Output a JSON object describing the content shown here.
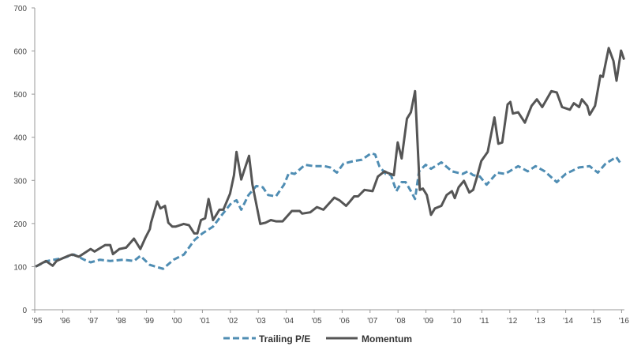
{
  "chart_data": {
    "type": "line",
    "title": "",
    "xlabel": "",
    "ylabel": "",
    "xlim": [
      1995,
      2016.1
    ],
    "ylim": [
      0,
      700
    ],
    "yticks": [
      0,
      100,
      200,
      300,
      400,
      500,
      600,
      700
    ],
    "xticks": [
      {
        "year": 1995,
        "label": "'95"
      },
      {
        "year": 1996,
        "label": "'96"
      },
      {
        "year": 1997,
        "label": "'97"
      },
      {
        "year": 1998,
        "label": "'98"
      },
      {
        "year": 1999,
        "label": "'99"
      },
      {
        "year": 2000,
        "label": "'00"
      },
      {
        "year": 2001,
        "label": "'01"
      },
      {
        "year": 2002,
        "label": "'02"
      },
      {
        "year": 2003,
        "label": "'03"
      },
      {
        "year": 2004,
        "label": "'04"
      },
      {
        "year": 2005,
        "label": "'05"
      },
      {
        "year": 2006,
        "label": "'06"
      },
      {
        "year": 2007,
        "label": "'07"
      },
      {
        "year": 2008,
        "label": "'08"
      },
      {
        "year": 2009,
        "label": "'09"
      },
      {
        "year": 2010,
        "label": "'10"
      },
      {
        "year": 2011,
        "label": "'11"
      },
      {
        "year": 2012,
        "label": "'12"
      },
      {
        "year": 2013,
        "label": "'13"
      },
      {
        "year": 2014,
        "label": "'14"
      },
      {
        "year": 2015,
        "label": "'15"
      },
      {
        "year": 2016,
        "label": "'16"
      }
    ],
    "grid": false,
    "legend_position": "bottom-center",
    "series": [
      {
        "name": "Trailing P/E",
        "color": "#4f8db3",
        "style": "dashed",
        "points": [
          [
            1995.03,
            100
          ],
          [
            1995.45,
            113
          ],
          [
            1996.02,
            120
          ],
          [
            1996.4,
            128
          ],
          [
            1996.77,
            116
          ],
          [
            1997.0,
            110
          ],
          [
            1997.33,
            116
          ],
          [
            1997.7,
            113
          ],
          [
            1998.17,
            116
          ],
          [
            1998.55,
            113
          ],
          [
            1998.78,
            125
          ],
          [
            1999.12,
            104
          ],
          [
            1999.59,
            95
          ],
          [
            1999.97,
            116
          ],
          [
            2000.34,
            128
          ],
          [
            2000.72,
            162
          ],
          [
            2001.0,
            177
          ],
          [
            2001.38,
            193
          ],
          [
            2001.66,
            217
          ],
          [
            2002.04,
            248
          ],
          [
            2002.22,
            254
          ],
          [
            2002.39,
            232
          ],
          [
            2002.65,
            266
          ],
          [
            2002.93,
            287
          ],
          [
            2003.16,
            284
          ],
          [
            2003.35,
            266
          ],
          [
            2003.63,
            263
          ],
          [
            2003.92,
            290
          ],
          [
            2004.1,
            318
          ],
          [
            2004.3,
            315
          ],
          [
            2004.67,
            336
          ],
          [
            2005.0,
            333
          ],
          [
            2005.38,
            333
          ],
          [
            2005.57,
            330
          ],
          [
            2005.81,
            318
          ],
          [
            2006.05,
            339
          ],
          [
            2006.43,
            345
          ],
          [
            2006.71,
            348
          ],
          [
            2007.04,
            363
          ],
          [
            2007.18,
            360
          ],
          [
            2007.33,
            333
          ],
          [
            2007.56,
            315
          ],
          [
            2007.75,
            312
          ],
          [
            2007.94,
            275
          ],
          [
            2008.13,
            296
          ],
          [
            2008.27,
            296
          ],
          [
            2008.46,
            275
          ],
          [
            2008.61,
            257
          ],
          [
            2008.75,
            321
          ],
          [
            2008.99,
            336
          ],
          [
            2009.18,
            327
          ],
          [
            2009.55,
            342
          ],
          [
            2009.93,
            321
          ],
          [
            2010.31,
            315
          ],
          [
            2010.5,
            321
          ],
          [
            2010.69,
            312
          ],
          [
            2010.93,
            309
          ],
          [
            2011.17,
            290
          ],
          [
            2011.55,
            318
          ],
          [
            2011.83,
            315
          ],
          [
            2012.3,
            333
          ],
          [
            2012.64,
            321
          ],
          [
            2012.92,
            333
          ],
          [
            2013.25,
            321
          ],
          [
            2013.68,
            296
          ],
          [
            2014.0,
            315
          ],
          [
            2014.48,
            330
          ],
          [
            2014.86,
            333
          ],
          [
            2015.15,
            318
          ],
          [
            2015.43,
            339
          ],
          [
            2015.81,
            354
          ],
          [
            2016.0,
            336
          ]
        ]
      },
      {
        "name": "Momentum",
        "color": "#555555",
        "style": "solid",
        "points": [
          [
            1995.03,
            100
          ],
          [
            1995.4,
            113
          ],
          [
            1995.64,
            102
          ],
          [
            1995.78,
            113
          ],
          [
            1996.2,
            125
          ],
          [
            1996.34,
            128
          ],
          [
            1996.58,
            123
          ],
          [
            1997.0,
            141
          ],
          [
            1997.14,
            135
          ],
          [
            1997.52,
            150
          ],
          [
            1997.7,
            150
          ],
          [
            1997.8,
            129
          ],
          [
            1998.03,
            141
          ],
          [
            1998.27,
            144
          ],
          [
            1998.55,
            165
          ],
          [
            1998.78,
            141
          ],
          [
            1998.97,
            168
          ],
          [
            1999.12,
            187
          ],
          [
            1999.16,
            202
          ],
          [
            1999.38,
            251
          ],
          [
            1999.5,
            235
          ],
          [
            1999.66,
            241
          ],
          [
            1999.78,
            202
          ],
          [
            1999.92,
            193
          ],
          [
            2000.05,
            193
          ],
          [
            2000.33,
            199
          ],
          [
            2000.52,
            196
          ],
          [
            2000.71,
            177
          ],
          [
            2000.82,
            177
          ],
          [
            2000.95,
            208
          ],
          [
            2001.1,
            212
          ],
          [
            2001.22,
            257
          ],
          [
            2001.38,
            208
          ],
          [
            2001.61,
            232
          ],
          [
            2001.75,
            232
          ],
          [
            2001.99,
            269
          ],
          [
            2002.13,
            312
          ],
          [
            2002.22,
            366
          ],
          [
            2002.39,
            302
          ],
          [
            2002.5,
            324
          ],
          [
            2002.67,
            357
          ],
          [
            2002.79,
            290
          ],
          [
            2003.07,
            199
          ],
          [
            2003.26,
            202
          ],
          [
            2003.45,
            208
          ],
          [
            2003.63,
            205
          ],
          [
            2003.87,
            205
          ],
          [
            2004.2,
            229
          ],
          [
            2004.48,
            229
          ],
          [
            2004.57,
            223
          ],
          [
            2004.86,
            226
          ],
          [
            2005.1,
            238
          ],
          [
            2005.33,
            232
          ],
          [
            2005.72,
            260
          ],
          [
            2005.9,
            254
          ],
          [
            2006.14,
            241
          ],
          [
            2006.28,
            251
          ],
          [
            2006.43,
            263
          ],
          [
            2006.57,
            263
          ],
          [
            2006.8,
            278
          ],
          [
            2007.09,
            275
          ],
          [
            2007.28,
            309
          ],
          [
            2007.52,
            321
          ],
          [
            2007.61,
            318
          ],
          [
            2007.85,
            312
          ],
          [
            2007.99,
            388
          ],
          [
            2008.13,
            351
          ],
          [
            2008.32,
            443
          ],
          [
            2008.46,
            458
          ],
          [
            2008.61,
            507
          ],
          [
            2008.78,
            278
          ],
          [
            2008.89,
            281
          ],
          [
            2009.03,
            266
          ],
          [
            2009.18,
            220
          ],
          [
            2009.32,
            235
          ],
          [
            2009.55,
            241
          ],
          [
            2009.74,
            266
          ],
          [
            2009.93,
            275
          ],
          [
            2010.03,
            259
          ],
          [
            2010.17,
            284
          ],
          [
            2010.36,
            299
          ],
          [
            2010.55,
            272
          ],
          [
            2010.69,
            278
          ],
          [
            2010.83,
            309
          ],
          [
            2010.98,
            345
          ],
          [
            2011.21,
            366
          ],
          [
            2011.45,
            446
          ],
          [
            2011.59,
            385
          ],
          [
            2011.73,
            388
          ],
          [
            2011.92,
            476
          ],
          [
            2012.02,
            482
          ],
          [
            2012.11,
            455
          ],
          [
            2012.3,
            458
          ],
          [
            2012.54,
            434
          ],
          [
            2012.78,
            473
          ],
          [
            2012.97,
            488
          ],
          [
            2013.16,
            470
          ],
          [
            2013.49,
            507
          ],
          [
            2013.68,
            504
          ],
          [
            2013.87,
            470
          ],
          [
            2014.15,
            464
          ],
          [
            2014.29,
            479
          ],
          [
            2014.48,
            470
          ],
          [
            2014.58,
            488
          ],
          [
            2014.77,
            473
          ],
          [
            2014.86,
            452
          ],
          [
            2015.05,
            473
          ],
          [
            2015.24,
            543
          ],
          [
            2015.33,
            540
          ],
          [
            2015.54,
            607
          ],
          [
            2015.71,
            577
          ],
          [
            2015.82,
            531
          ],
          [
            2015.98,
            601
          ],
          [
            2016.09,
            580
          ]
        ]
      }
    ]
  }
}
